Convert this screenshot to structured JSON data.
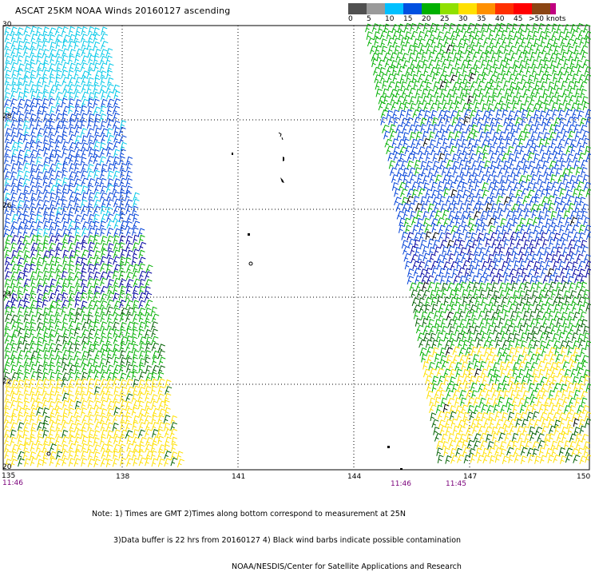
{
  "title": "ASCAT 25KM NOAA Winds 20160127 ascending",
  "legend": {
    "labels": [
      "0",
      "5",
      "10",
      "15",
      "20",
      "25",
      "30",
      "35",
      "40",
      "45",
      ">50 knots"
    ],
    "colors": [
      "#505050",
      "#9a9a9a",
      "#00c0ff",
      "#0050e0",
      "#00b000",
      "#90e000",
      "#ffe000",
      "#ff9000",
      "#ff3000",
      "#ff0000",
      "#8b4513",
      "#c00080",
      "#7000c0"
    ]
  },
  "axes": {
    "lat_labels": [
      "30",
      "28",
      "26",
      "24",
      "22",
      "20"
    ],
    "lon_labels": [
      "135",
      "138",
      "141",
      "144",
      "147",
      "150"
    ],
    "lat_range": [
      20,
      30
    ],
    "lon_range": [
      135,
      150
    ]
  },
  "pass_times": [
    "11:46",
    "11:46",
    "11:45"
  ],
  "notes": [
    "Note: 1) Times are GMT 2)Times along bottom correspond to measurement at 25N",
    "3)Data buffer is 22 hrs from 20160127 4) Black wind barbs indicate possible contamination",
    "NOAA/NESDIS/Center for Satellite Applications and Research"
  ],
  "wind_barb_colors": {
    "cyan": "#00c8e8",
    "blue": "#0040d8",
    "dark_blue": "#0000a0",
    "green": "#00b000",
    "dark_green": "#006000",
    "yellow": "#ffe000",
    "contaminated": "#000000",
    "land": "#000000"
  }
}
